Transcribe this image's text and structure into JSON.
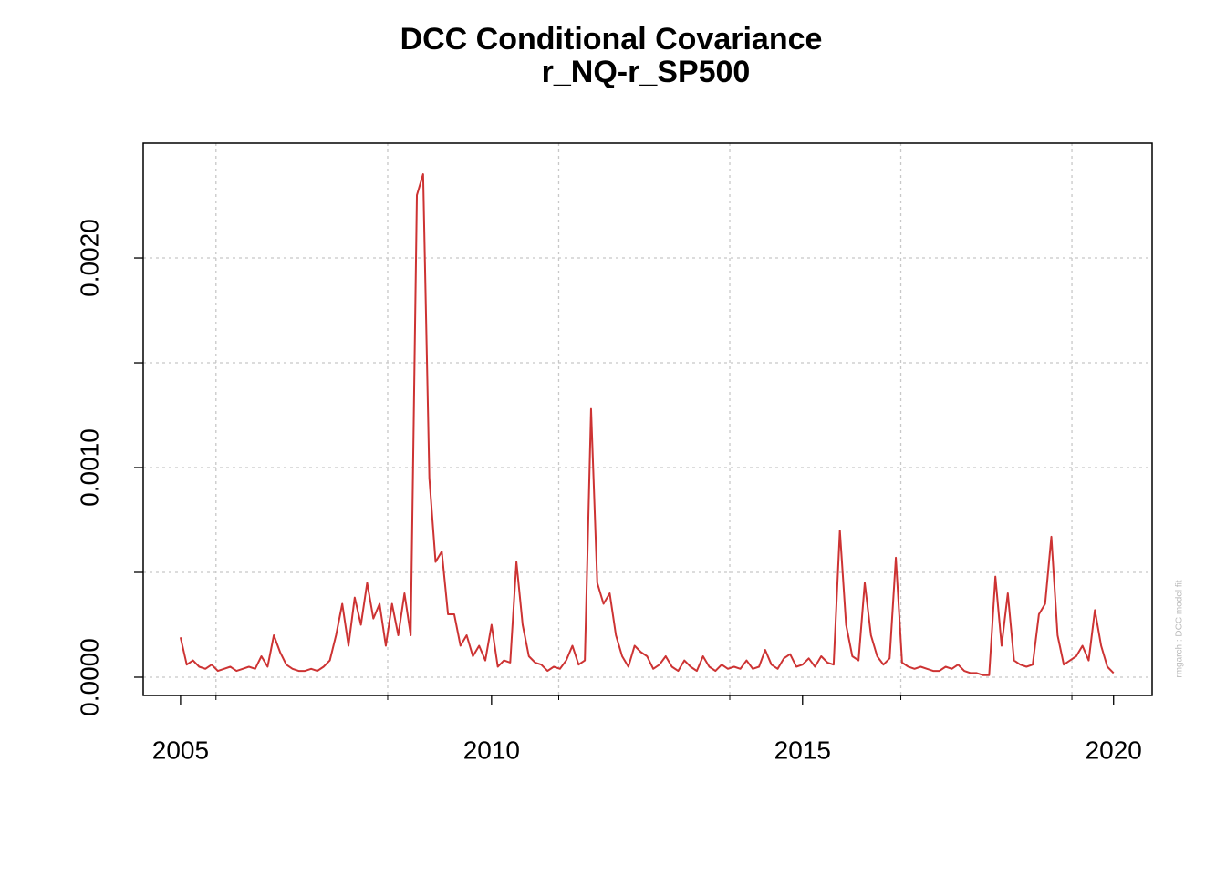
{
  "chart_data": {
    "type": "line",
    "title": "DCC Conditional Covariance",
    "subtitle": "r_NQ-r_SP500",
    "watermark": "rmgarch  :  DCC model fit",
    "x": [
      2005.0,
      2005.1,
      2005.2,
      2005.3,
      2005.4,
      2005.5,
      2005.6,
      2005.7,
      2005.8,
      2005.9,
      2006.0,
      2006.1,
      2006.2,
      2006.3,
      2006.4,
      2006.5,
      2006.6,
      2006.7,
      2006.8,
      2006.9,
      2007.0,
      2007.1,
      2007.2,
      2007.3,
      2007.4,
      2007.5,
      2007.6,
      2007.7,
      2007.8,
      2007.9,
      2008.0,
      2008.1,
      2008.2,
      2008.3,
      2008.4,
      2008.5,
      2008.6,
      2008.7,
      2008.8,
      2008.9,
      2009.0,
      2009.1,
      2009.2,
      2009.3,
      2009.4,
      2009.5,
      2009.6,
      2009.7,
      2009.8,
      2009.9,
      2010.0,
      2010.1,
      2010.2,
      2010.3,
      2010.4,
      2010.5,
      2010.6,
      2010.7,
      2010.8,
      2010.9,
      2011.0,
      2011.1,
      2011.2,
      2011.3,
      2011.4,
      2011.5,
      2011.6,
      2011.7,
      2011.8,
      2011.9,
      2012.0,
      2012.1,
      2012.2,
      2012.3,
      2012.4,
      2012.5,
      2012.6,
      2012.7,
      2012.8,
      2012.9,
      2013.0,
      2013.1,
      2013.2,
      2013.3,
      2013.4,
      2013.5,
      2013.6,
      2013.7,
      2013.8,
      2013.9,
      2014.0,
      2014.1,
      2014.2,
      2014.3,
      2014.4,
      2014.5,
      2014.6,
      2014.7,
      2014.8,
      2014.9,
      2015.0,
      2015.1,
      2015.2,
      2015.3,
      2015.4,
      2015.5,
      2015.6,
      2015.7,
      2015.8,
      2015.9,
      2016.0,
      2016.1,
      2016.2,
      2016.3,
      2016.4,
      2016.5,
      2016.6,
      2016.7,
      2016.8,
      2016.9,
      2017.0,
      2017.1,
      2017.2,
      2017.3,
      2017.4,
      2017.5,
      2017.6,
      2017.7,
      2017.8,
      2017.9,
      2018.0,
      2018.1,
      2018.2,
      2018.3,
      2018.4,
      2018.5,
      2018.6,
      2018.7,
      2018.8,
      2018.9,
      2019.0,
      2019.1,
      2019.2,
      2019.3,
      2019.4,
      2019.5,
      2019.6,
      2019.7,
      2019.8,
      2019.9,
      2020.0
    ],
    "series": [
      {
        "name": "r_NQ-r_SP500",
        "color": "#cd3333",
        "values": [
          0.00019,
          6e-05,
          8e-05,
          5e-05,
          4e-05,
          6e-05,
          3e-05,
          4e-05,
          5e-05,
          3e-05,
          4e-05,
          5e-05,
          4e-05,
          0.0001,
          5e-05,
          0.0002,
          0.00012,
          6e-05,
          4e-05,
          3e-05,
          3e-05,
          4e-05,
          3e-05,
          5e-05,
          8e-05,
          0.0002,
          0.00035,
          0.00015,
          0.00038,
          0.00025,
          0.00045,
          0.00028,
          0.00035,
          0.00015,
          0.00035,
          0.0002,
          0.0004,
          0.0002,
          0.0023,
          0.0024,
          0.00095,
          0.00055,
          0.0006,
          0.0003,
          0.0003,
          0.00015,
          0.0002,
          0.0001,
          0.00015,
          8e-05,
          0.00025,
          5e-05,
          8e-05,
          7e-05,
          0.00055,
          0.00025,
          0.0001,
          7e-05,
          6e-05,
          3e-05,
          5e-05,
          4e-05,
          8e-05,
          0.00015,
          6e-05,
          8e-05,
          0.00128,
          0.00045,
          0.00035,
          0.0004,
          0.0002,
          0.0001,
          5e-05,
          0.00015,
          0.00012,
          0.0001,
          4e-05,
          6e-05,
          0.0001,
          5e-05,
          3e-05,
          8e-05,
          5e-05,
          3e-05,
          0.0001,
          5e-05,
          3e-05,
          6e-05,
          4e-05,
          5e-05,
          4e-05,
          8e-05,
          4e-05,
          5e-05,
          0.00013,
          6e-05,
          4e-05,
          9e-05,
          0.00011,
          5e-05,
          6e-05,
          9e-05,
          5e-05,
          0.0001,
          7e-05,
          6e-05,
          0.0007,
          0.00025,
          0.0001,
          8e-05,
          0.00045,
          0.0002,
          0.0001,
          6e-05,
          9e-05,
          0.00057,
          7e-05,
          5e-05,
          4e-05,
          5e-05,
          4e-05,
          3e-05,
          3e-05,
          5e-05,
          4e-05,
          6e-05,
          3e-05,
          2e-05,
          2e-05,
          1e-05,
          1e-05,
          0.00048,
          0.00015,
          0.0004,
          8e-05,
          6e-05,
          5e-05,
          6e-05,
          0.0003,
          0.00035,
          0.00067,
          0.0002,
          6e-05,
          8e-05,
          0.0001,
          0.00015,
          8e-05,
          0.00032,
          0.00015,
          5e-05,
          2e-05
        ]
      }
    ],
    "xlim": [
      2004.4,
      2020.62
    ],
    "ylim": [
      -8.7e-05,
      0.002548
    ],
    "xticks": [
      2005,
      2010,
      2015,
      2020
    ],
    "yticks": [
      {
        "value": 0,
        "label": "0.0000"
      },
      {
        "value": 0.001,
        "label": "0.0010"
      },
      {
        "value": 0.002,
        "label": "0.0020"
      }
    ],
    "yminorticks": [
      0.0005,
      0.0015
    ],
    "xgrid": [
      2005.57,
      2008.33,
      2011.08,
      2013.83,
      2016.58,
      2019.33
    ],
    "grid": true
  }
}
